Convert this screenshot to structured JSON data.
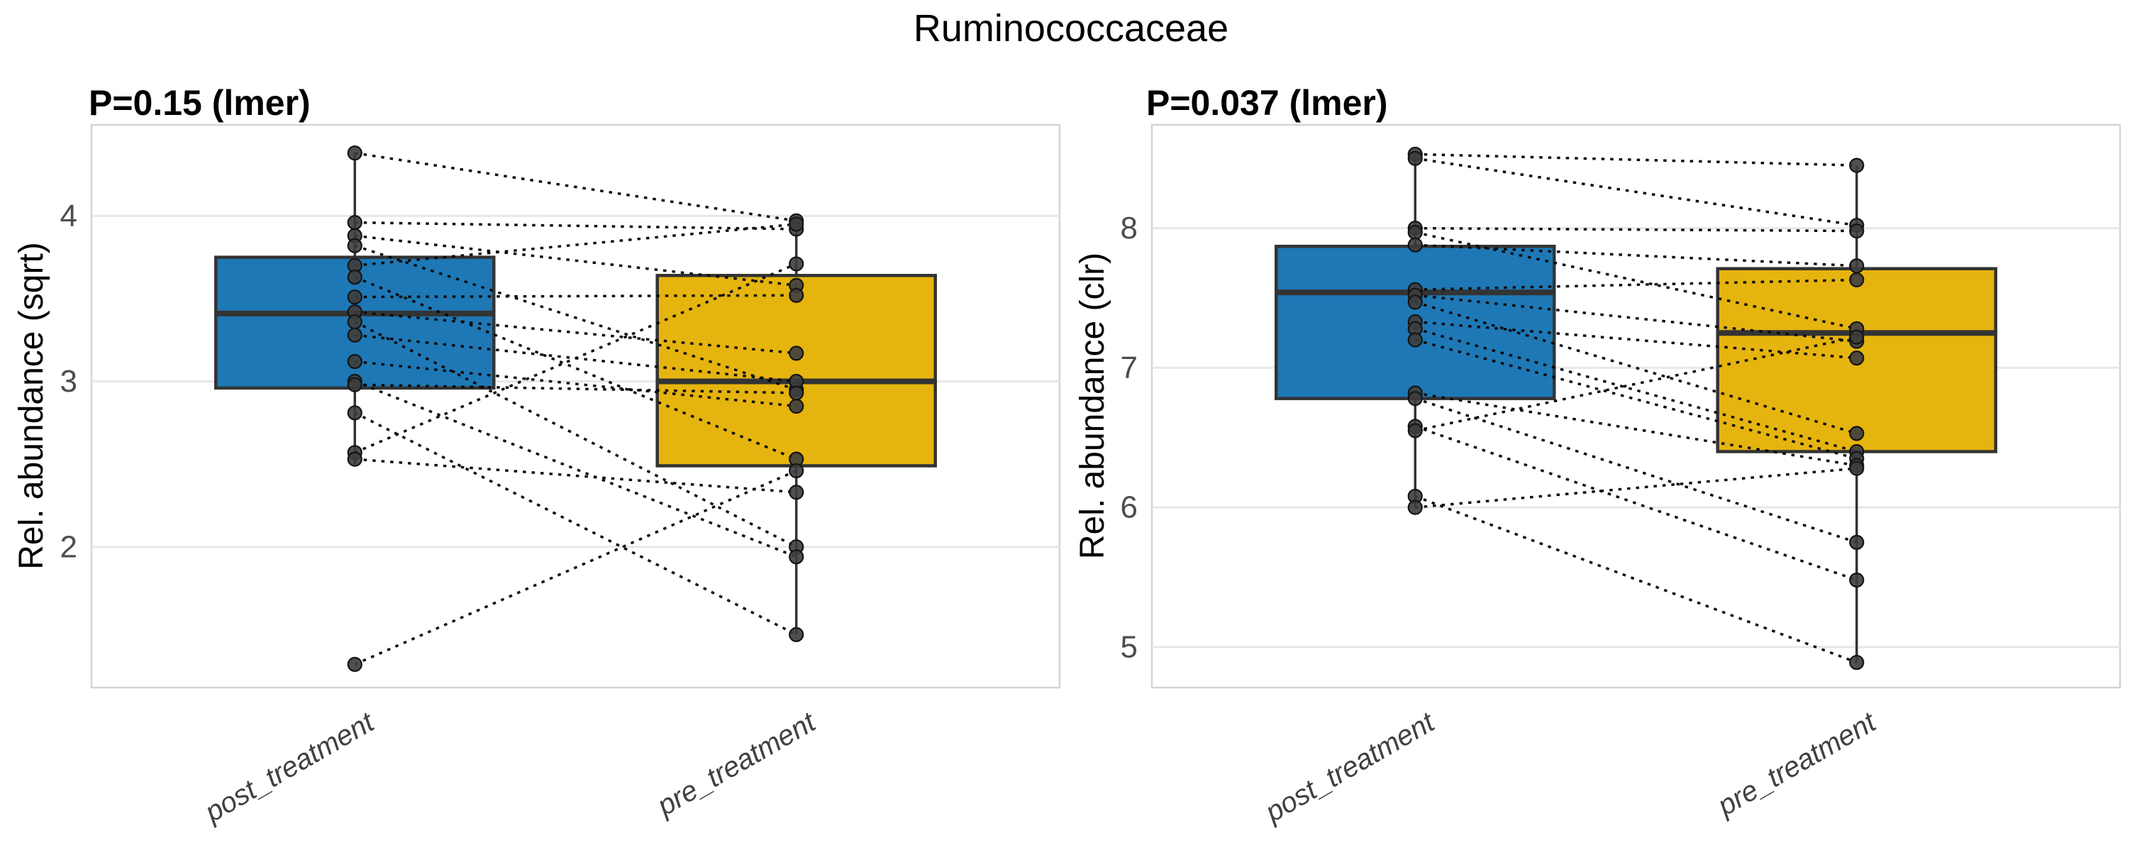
{
  "title": "Ruminococcaceae",
  "colors": {
    "post_box": "#1e78b5",
    "pre_box": "#e6b40e",
    "box_stroke": "#333333",
    "pair_line": "#0a0a0a",
    "point_fill": "#3d3d3d",
    "point_stroke": "#141414",
    "gridline": "#e7e7e7",
    "panel_border": "#d4d4d4",
    "tick_label": "#4d4d4d",
    "x_label": "#404040"
  },
  "chart_data": [
    {
      "type": "box",
      "title": "P=0.15 (lmer)",
      "ylabel": "Rel. abundance (sqrt)",
      "categories": [
        "post_treatment",
        "pre_treatment"
      ],
      "yticks": [
        4,
        3,
        2
      ],
      "ylim": [
        1.15,
        4.55
      ],
      "grid": "horizontal-major-only",
      "legend": "none",
      "boxes": [
        {
          "category": "post_treatment",
          "q1": 2.96,
          "median": 3.41,
          "q3": 3.75,
          "whisker_low": 2.5,
          "whisker_high": 4.38
        },
        {
          "category": "pre_treatment",
          "q1": 2.49,
          "median": 3.0,
          "q3": 3.64,
          "whisker_low": 1.47,
          "whisker_high": 3.97
        }
      ],
      "pairs": [
        [
          4.38,
          3.97
        ],
        [
          3.96,
          3.92
        ],
        [
          3.88,
          3.58
        ],
        [
          3.82,
          2.95
        ],
        [
          3.7,
          3.95
        ],
        [
          3.63,
          2.53
        ],
        [
          3.51,
          3.52
        ],
        [
          3.42,
          3.17
        ],
        [
          3.36,
          2.0
        ],
        [
          3.28,
          3.0
        ],
        [
          3.12,
          2.85
        ],
        [
          3.0,
          1.94
        ],
        [
          2.98,
          2.93
        ],
        [
          2.81,
          1.47
        ],
        [
          2.57,
          3.71
        ],
        [
          2.53,
          2.33
        ],
        [
          1.29,
          2.46
        ]
      ]
    },
    {
      "type": "box",
      "title": "P=0.037 (lmer)",
      "ylabel": "Rel. abundance (clr)",
      "categories": [
        "post_treatment",
        "pre_treatment"
      ],
      "yticks": [
        8,
        7,
        6,
        5
      ],
      "ylim": [
        4.71,
        8.74
      ],
      "grid": "horizontal-major-only",
      "legend": "none",
      "boxes": [
        {
          "category": "post_treatment",
          "q1": 6.78,
          "median": 7.54,
          "q3": 7.87,
          "whisker_low": 6.0,
          "whisker_high": 8.53
        },
        {
          "category": "pre_treatment",
          "q1": 6.4,
          "median": 7.25,
          "q3": 7.71,
          "whisker_low": 4.89,
          "whisker_high": 8.45
        }
      ],
      "pairs": [
        [
          8.53,
          8.45
        ],
        [
          8.5,
          8.02
        ],
        [
          8.0,
          7.98
        ],
        [
          7.97,
          7.28
        ],
        [
          7.88,
          7.73
        ],
        [
          7.56,
          7.63
        ],
        [
          7.52,
          7.19
        ],
        [
          7.47,
          6.53
        ],
        [
          7.33,
          7.07
        ],
        [
          7.28,
          6.4
        ],
        [
          7.2,
          6.35
        ],
        [
          6.82,
          6.3
        ],
        [
          6.78,
          5.75
        ],
        [
          6.58,
          5.48
        ],
        [
          6.55,
          7.22
        ],
        [
          6.08,
          4.89
        ],
        [
          6.0,
          6.28
        ]
      ]
    }
  ]
}
